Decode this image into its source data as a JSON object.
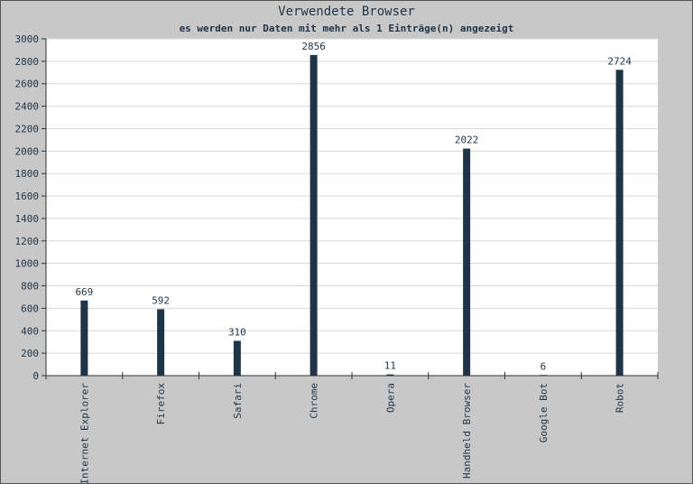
{
  "chart_data": {
    "type": "bar",
    "title": "Verwendete Browser",
    "subtitle": "es werden nur Daten mit mehr als 1 Einträge(n) angezeigt",
    "categories": [
      "Internet Explorer",
      "Firefox",
      "Safari",
      "Chrome",
      "Opera",
      "Handheld Browser",
      "Google Bot",
      "Robot"
    ],
    "values": [
      669,
      592,
      310,
      2856,
      11,
      2022,
      6,
      2724
    ],
    "color": "#1f3547",
    "ylim": [
      0,
      3000
    ],
    "yticks": [
      0,
      200,
      400,
      600,
      800,
      1000,
      1200,
      1400,
      1600,
      1800,
      2000,
      2200,
      2400,
      2600,
      2800,
      3000
    ],
    "grid": true
  }
}
